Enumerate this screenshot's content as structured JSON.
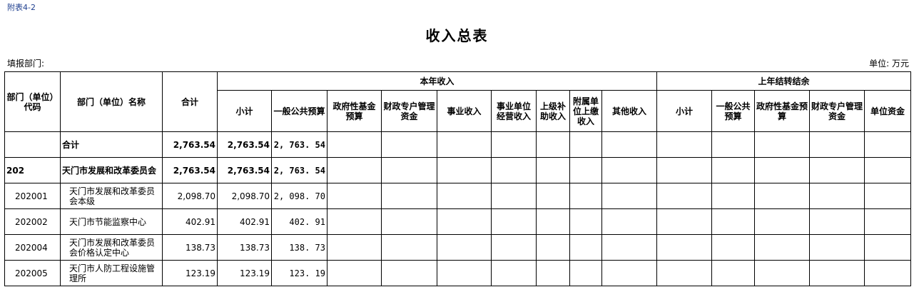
{
  "note": "附表4-2",
  "title": "收入总表",
  "fill_dept": "填报部门:",
  "unit": "单位: 万元",
  "headers": {
    "code": "部门（单位）代码",
    "name": "部门（单位）名称",
    "total": "合计",
    "current": "本年收入",
    "prior": "上年结转结余",
    "current_cols": [
      "小计",
      "一般公共预算",
      "政府性基金预算",
      "财政专户管理资金",
      "事业收入",
      "事业单位经营收入",
      "上级补助收入",
      "附属单位上缴收入",
      "其他收入"
    ],
    "prior_cols": [
      "小计",
      "一般公共预算",
      "政府性基金预算",
      "财政专户管理资金",
      "单位资金"
    ]
  },
  "rows": [
    {
      "code": "",
      "name": "合计",
      "total": "2,763.54",
      "subtotal": "2,763.54",
      "general": "2, 763. 54",
      "bold": true
    },
    {
      "code": "202",
      "name": "天门市发展和改革委员会",
      "total": "2,763.54",
      "subtotal": "2,763.54",
      "general": "2, 763. 54",
      "bold": true
    },
    {
      "code": "202001",
      "name": "天门市发展和改革委员会本级",
      "total": "2,098.70",
      "subtotal": "2,098.70",
      "general": "2, 098. 70"
    },
    {
      "code": "202002",
      "name": "天门市节能监察中心",
      "total": "402.91",
      "subtotal": "402.91",
      "general": "402. 91"
    },
    {
      "code": "202004",
      "name": "天门市发展和改革委员会价格认定中心",
      "total": "138.73",
      "subtotal": "138.73",
      "general": "138. 73"
    },
    {
      "code": "202005",
      "name": "天门市人防工程设施管理所",
      "total": "123.19",
      "subtotal": "123.19",
      "general": "123. 19"
    }
  ]
}
